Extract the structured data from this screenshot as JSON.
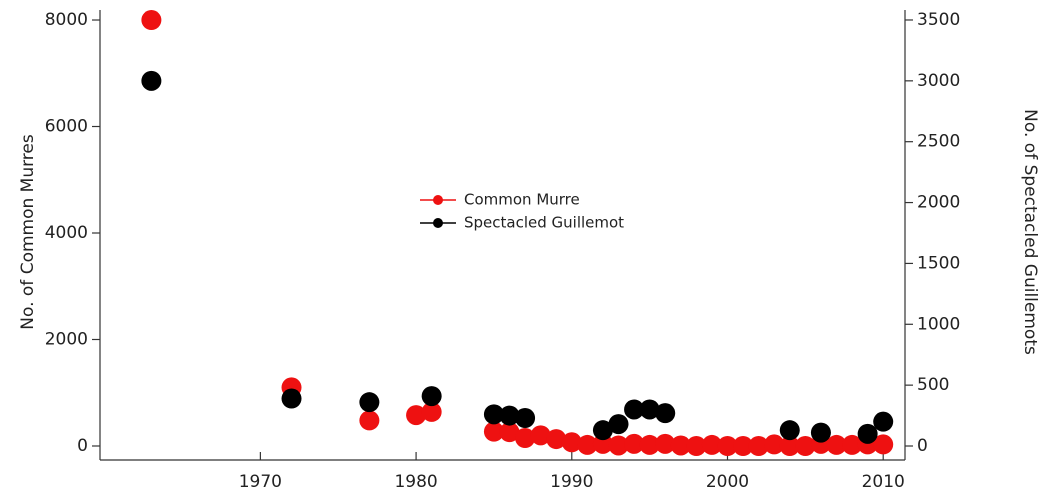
{
  "chart_data": {
    "type": "scatter",
    "ylabel": "No. of Common Murres",
    "y2label": "No. of Spectacled Guillemots",
    "xlim": [
      1959.7,
      2011.4
    ],
    "xticks": [
      1970,
      1980,
      1990,
      2000,
      2010
    ],
    "ylim": [
      -263,
      8188
    ],
    "yticks": [
      0,
      2000,
      4000,
      6000,
      8000
    ],
    "y2lim": [
      -115,
      3582
    ],
    "y2ticks": [
      0,
      500,
      1000,
      1500,
      2000,
      2500,
      3000,
      3500
    ],
    "legend": "center",
    "series": [
      {
        "name": "Common Murre",
        "color": "#ee1111",
        "x": [
          1963,
          1972,
          1977,
          1980,
          1981,
          1985,
          1986,
          1987,
          1988,
          1989,
          1990,
          1991,
          1992,
          1993,
          1994,
          1995,
          1996,
          1997,
          1998,
          1999,
          2000,
          2001,
          2002,
          2003,
          2004,
          2005,
          2006,
          2007,
          2008,
          2009,
          2010
        ],
        "values": [
          8000,
          1100,
          480,
          580,
          640,
          270,
          260,
          150,
          200,
          130,
          70,
          20,
          40,
          10,
          40,
          20,
          40,
          10,
          0,
          20,
          0,
          0,
          0,
          30,
          0,
          0,
          40,
          20,
          20,
          30,
          30
        ]
      },
      {
        "name": "Spectacled Guillemot",
        "color": "#000000",
        "axis": "y2",
        "x": [
          1963,
          1972,
          1977,
          1981,
          1985,
          1986,
          1987,
          1992,
          1993,
          1994,
          1995,
          1996,
          2004,
          2006,
          2009,
          2010
        ],
        "values": [
          3000,
          390,
          360,
          410,
          260,
          250,
          230,
          130,
          180,
          300,
          300,
          270,
          130,
          110,
          100,
          200
        ]
      }
    ]
  }
}
